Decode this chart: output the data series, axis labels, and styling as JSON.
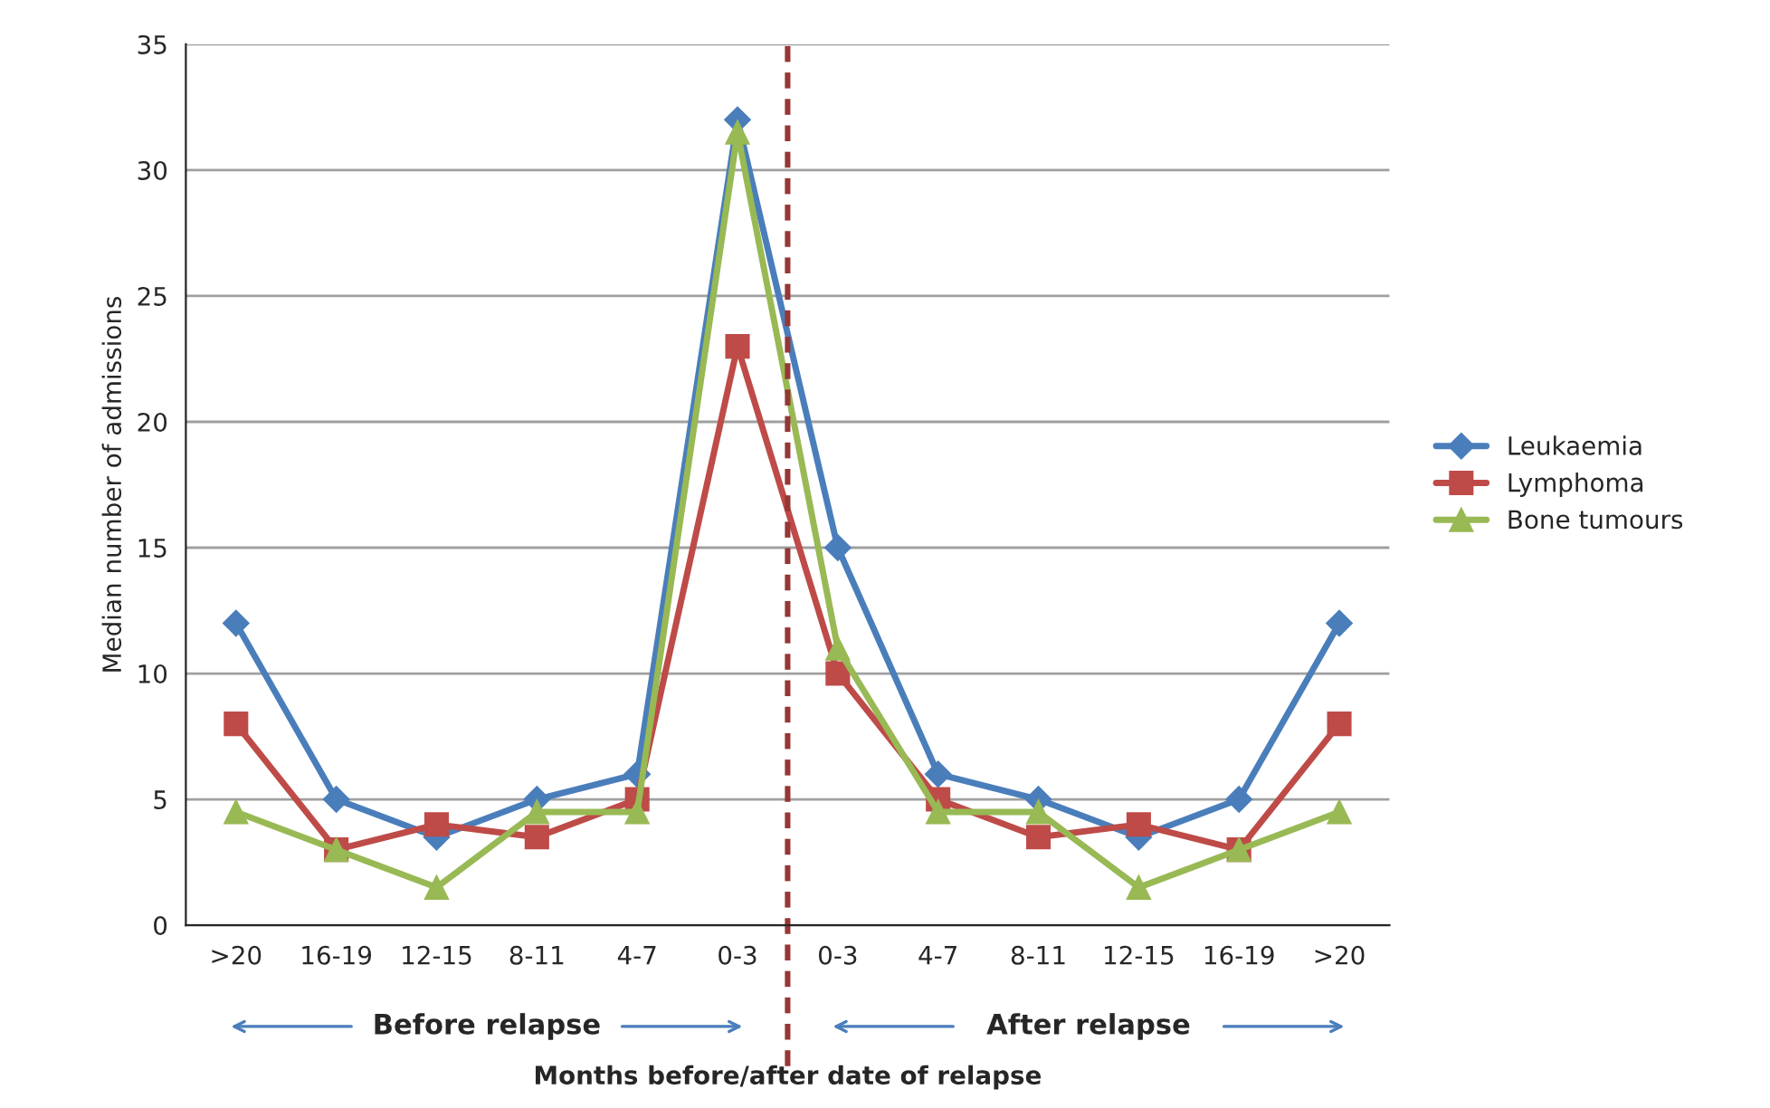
{
  "chart_data": {
    "type": "line",
    "xlabel": "Months before/after date of relapse",
    "ylabel": "Median number of admissions",
    "categories": [
      ">20",
      "16-19",
      "12-15",
      "8-11",
      "4-7",
      "0-3",
      "0-3",
      "4-7",
      "8-11",
      "12-15",
      "16-19",
      ">20"
    ],
    "series": [
      {
        "name": "Leukaemia",
        "color": "#4a7ebb",
        "marker": "diamond",
        "values": [
          12,
          5,
          3.5,
          5,
          6,
          32,
          15,
          6,
          5,
          3.5,
          5,
          12
        ]
      },
      {
        "name": "Lymphoma",
        "color": "#be4b48",
        "marker": "square",
        "values": [
          8,
          3,
          4,
          3.5,
          5,
          23,
          10,
          5,
          3.5,
          4,
          3,
          8
        ]
      },
      {
        "name": "Bone tumours",
        "color": "#98b954",
        "marker": "triangle",
        "values": [
          4.5,
          3,
          1.5,
          4.5,
          4.5,
          31.5,
          11,
          4.5,
          4.5,
          1.5,
          3,
          4.5
        ]
      }
    ],
    "ylim": [
      0,
      35
    ],
    "yticks": [
      0,
      5,
      10,
      15,
      20,
      25,
      30,
      35
    ],
    "grid": "y",
    "legend": "right",
    "annotations": [
      "Before relapse",
      "After relapse"
    ]
  }
}
